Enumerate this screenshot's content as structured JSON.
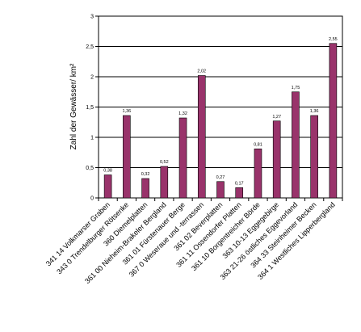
{
  "chart_data": {
    "type": "bar",
    "title": "",
    "xlabel": "",
    "ylabel": "Zahl der Gewässer/ km²",
    "ylim": [
      0,
      3
    ],
    "yticks": [
      "0",
      "0,5",
      "1",
      "1,5",
      "2",
      "2,5",
      "3"
    ],
    "grid": true,
    "legend": "none",
    "bar_color": "#99336b",
    "categories": [
      "341  14 Volkmarser Graben",
      "343  0 Trendelburger Rötsenke",
      "360  Diemelplatten",
      "361  00 Nieheim-Brakeler Bergland",
      "361  01 Fürstenauer Berge",
      "367  0 Weseraue und -terrassen",
      "361  02 Beverplatten",
      "361  11 Ossendorfer Platten",
      "361  10 Borgentreicher Börde",
      "363  10-13 Eggegebirge",
      "363  21-26 östliches Eggevorland",
      "364  33 Steinheimer Becken",
      "364  1 Westliches Lipperbergland"
    ],
    "values": [
      0.38,
      1.36,
      0.32,
      0.52,
      1.32,
      2.02,
      0.27,
      0.17,
      0.81,
      1.27,
      1.75,
      1.36,
      2.55
    ],
    "data_labels": [
      "0,38",
      "1,36",
      "0,32",
      "0,52",
      "1,32",
      "2,02",
      "0,27",
      "0,17",
      "0,81",
      "1,27",
      "1,75",
      "1,36",
      "2,55"
    ]
  }
}
